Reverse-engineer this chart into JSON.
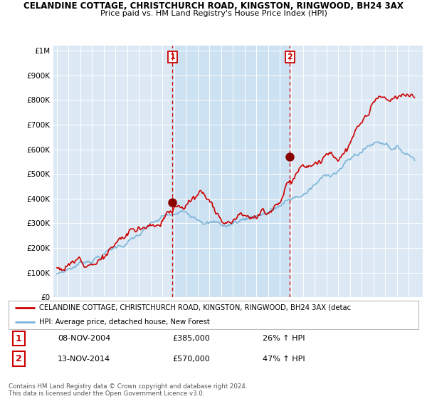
{
  "title": "CELANDINE COTTAGE, CHRISTCHURCH ROAD, KINGSTON, RINGWOOD, BH24 3AX",
  "subtitle": "Price paid vs. HM Land Registry's House Price Index (HPI)",
  "ylim": [
    0,
    1000000
  ],
  "yticks": [
    0,
    100000,
    200000,
    300000,
    400000,
    500000,
    600000,
    700000,
    800000,
    900000,
    1000000
  ],
  "ytick_labels": [
    "£0",
    "£100K",
    "£200K",
    "£300K",
    "£400K",
    "£500K",
    "£600K",
    "£700K",
    "£800K",
    "£900K",
    "£1M"
  ],
  "hpi_color": "#7ab4d8",
  "price_color": "#cc0000",
  "vline_color": "#cc0000",
  "shade_color": "#c8dff0",
  "purchase1_date": 2004.86,
  "purchase1_price": 385000,
  "purchase2_date": 2014.87,
  "purchase2_price": 570000,
  "xmin": 1995,
  "xmax": 2025.5,
  "legend_label_price": "CELANDINE COTTAGE, CHRISTCHURCH ROAD, KINGSTON, RINGWOOD, BH24 3AX (detac",
  "legend_label_hpi": "HPI: Average price, detached house, New Forest",
  "note1_date": "08-NOV-2004",
  "note1_price": "£385,000",
  "note1_hpi": "26% ↑ HPI",
  "note2_date": "13-NOV-2014",
  "note2_price": "£570,000",
  "note2_hpi": "47% ↑ HPI",
  "footer": "Contains HM Land Registry data © Crown copyright and database right 2024.\nThis data is licensed under the Open Government Licence v3.0.",
  "plot_bg_color": "#dce9f5",
  "fig_bg_color": "#ffffff"
}
